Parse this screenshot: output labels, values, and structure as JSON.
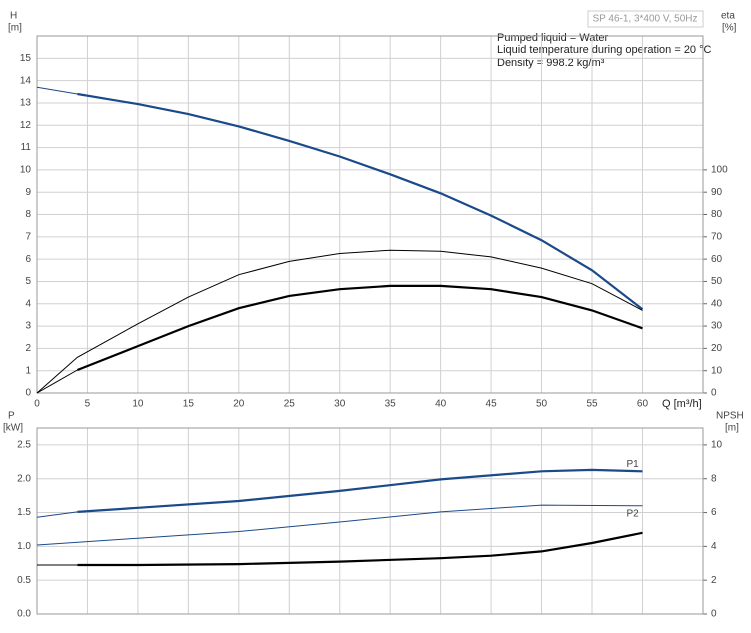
{
  "chart_data": [
    {
      "type": "line",
      "header": "SP 46-1, 3*400 V, 50Hz",
      "annotations": [
        "Pumped liquid = Water",
        "Liquid temperature during operation = 20 °C",
        "Density = 998.2 kg/m³"
      ],
      "x_label": "Q [m³/h]",
      "y_label": "H",
      "y_unit": "[m]",
      "y2_label": "eta",
      "y2_unit": "[%]",
      "xlim": [
        0,
        66
      ],
      "xticks": [
        0,
        5,
        10,
        15,
        20,
        25,
        30,
        35,
        40,
        45,
        50,
        55,
        60
      ],
      "ylim": [
        0,
        16
      ],
      "yticks": [
        0,
        1,
        2,
        3,
        4,
        5,
        6,
        7,
        8,
        9,
        10,
        11,
        12,
        13,
        14,
        15
      ],
      "y2lim": [
        0,
        160
      ],
      "y2ticks": [
        0,
        10,
        20,
        30,
        40,
        50,
        60,
        70,
        80,
        90,
        100
      ],
      "grid": true,
      "series": [
        {
          "color": "#1a4a8a",
          "width": 1,
          "x": [
            0,
            4
          ],
          "values": [
            13.7,
            13.4
          ]
        },
        {
          "color": "#1a4a8a",
          "width": 2.2,
          "x": [
            4,
            10,
            15,
            20,
            25,
            30,
            35,
            40,
            45,
            50,
            55,
            60
          ],
          "values": [
            13.4,
            12.95,
            12.5,
            11.95,
            11.3,
            10.6,
            9.8,
            8.95,
            7.95,
            6.85,
            5.5,
            3.75
          ]
        },
        {
          "color": "#000000",
          "width": 1,
          "axis": "y2",
          "x": [
            0,
            4,
            10,
            15,
            20,
            25,
            30,
            35,
            40,
            45,
            50,
            55,
            60
          ],
          "values": [
            0,
            16,
            31,
            43,
            53,
            59,
            62.5,
            64,
            63.5,
            61,
            56,
            49,
            37
          ]
        },
        {
          "color": "#000000",
          "width": 1,
          "axis": "y2",
          "x": [
            0,
            4
          ],
          "values": [
            0,
            10.3
          ]
        },
        {
          "color": "#000000",
          "width": 2.2,
          "axis": "y2",
          "x": [
            4,
            10,
            15,
            20,
            25,
            30,
            35,
            40,
            45,
            50,
            55,
            60
          ],
          "values": [
            10.3,
            21,
            30,
            38,
            43.5,
            46.5,
            48,
            48,
            46.5,
            43,
            37,
            29
          ]
        }
      ]
    },
    {
      "type": "line",
      "y_label": "P",
      "y_unit": "[kW]",
      "y2_label": "NPSH",
      "y2_unit": "[m]",
      "xlim": [
        0,
        66
      ],
      "xticks": [
        0,
        5,
        10,
        15,
        20,
        25,
        30,
        35,
        40,
        45,
        50,
        55,
        60
      ],
      "ylim": [
        0,
        2.75
      ],
      "yticks": [
        {
          "value": 0,
          "label": "0.0"
        },
        {
          "value": 0.5,
          "label": "0.5"
        },
        {
          "value": 1,
          "label": "1.0"
        },
        {
          "value": 1.5,
          "label": "1.5"
        },
        {
          "value": 2,
          "label": "2.0"
        },
        {
          "value": 2.5,
          "label": "2.5"
        }
      ],
      "y2lim": [
        0,
        11
      ],
      "y2ticks": [
        0,
        2,
        4,
        6,
        8,
        10
      ],
      "grid": true,
      "series": [
        {
          "color": "#1a4a8a",
          "width": 1,
          "x": [
            0,
            4
          ],
          "values": [
            1.43,
            1.51
          ]
        },
        {
          "label": "P1",
          "color": "#1a4a8a",
          "width": 2.2,
          "x": [
            4,
            10,
            20,
            30,
            40,
            50,
            55,
            60
          ],
          "values": [
            1.51,
            1.57,
            1.67,
            1.82,
            1.99,
            2.11,
            2.13,
            2.11
          ]
        },
        {
          "label": "P2",
          "color": "#1a4a8a",
          "width": 1,
          "x": [
            0,
            10,
            20,
            30,
            40,
            50,
            60
          ],
          "values": [
            1.02,
            1.12,
            1.22,
            1.36,
            1.51,
            1.61,
            1.6
          ]
        },
        {
          "color": "#000000",
          "width": 1,
          "axis": "y2",
          "x": [
            0,
            4
          ],
          "values": [
            2.9,
            2.9
          ]
        },
        {
          "color": "#000000",
          "width": 2.2,
          "axis": "y2",
          "x": [
            4,
            10,
            20,
            30,
            40,
            45,
            50,
            55,
            60
          ],
          "values": [
            2.9,
            2.9,
            2.95,
            3.1,
            3.3,
            3.45,
            3.7,
            4.2,
            4.8
          ]
        }
      ]
    }
  ]
}
